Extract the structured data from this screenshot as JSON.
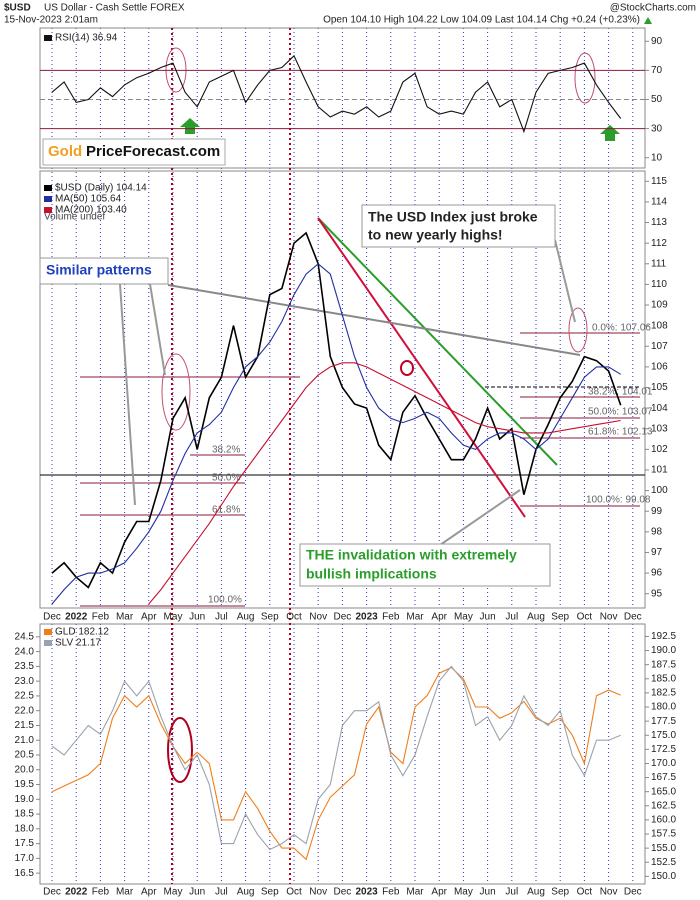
{
  "header": {
    "symbol": "$USD",
    "name": "US Dollar - Cash Settle FOREX",
    "date": "15-Nov-2023 2:01am",
    "quote": "Open 104.10 High 104.22 Low 104.09 Last 104.14 Chg +0.24 (+0.23%)",
    "credit": "@StockCharts.com",
    "logo": [
      "Gold",
      "PriceForecast.com"
    ]
  },
  "chart_data": [
    {
      "type": "line",
      "series": [
        {
          "name": "RSI(14) 36.94",
          "color": "#111111",
          "values": [
            55,
            62,
            48,
            50,
            58,
            52,
            60,
            65,
            68,
            72,
            75,
            55,
            45,
            62,
            66,
            70,
            48,
            60,
            70,
            72,
            80,
            62,
            45,
            38,
            42,
            40,
            45,
            38,
            42,
            62,
            68,
            45,
            40,
            42,
            40,
            55,
            62,
            45,
            50,
            28,
            55,
            68,
            70,
            72,
            75,
            60,
            48,
            36.94,
            null,
            null
          ]
        }
      ],
      "ylim": [
        5,
        95
      ],
      "yticks": [
        10,
        30,
        50,
        70,
        90
      ],
      "levels": [
        30,
        50,
        70
      ]
    },
    {
      "type": "line",
      "categories": [
        "Dec",
        null,
        "2022",
        null,
        "Feb",
        null,
        "Mar",
        null,
        "Apr",
        null,
        "May",
        null,
        "Jun",
        null,
        "Jul",
        null,
        "Aug",
        null,
        "Sep",
        null,
        "Oct",
        null,
        "Nov",
        null,
        "Dec",
        null,
        "2023",
        null,
        "Feb",
        null,
        "Mar",
        null,
        "Apr",
        null,
        "May",
        null,
        "Jun",
        null,
        "Jul",
        null,
        "Aug",
        null,
        "Sep",
        null,
        "Oct",
        null,
        "Nov",
        null,
        "Dec",
        null
      ],
      "series": [
        {
          "name": "$USD (Daily) 104.14",
          "color": "#000000",
          "values": [
            96.0,
            96.5,
            95.8,
            95.3,
            96.5,
            96.0,
            97.5,
            98.5,
            98.5,
            100.5,
            103.5,
            104.5,
            102.0,
            104.5,
            105.5,
            108.0,
            105.5,
            106.5,
            109.5,
            109.8,
            112.0,
            112.5,
            111.0,
            106.5,
            105.0,
            104.2,
            104.0,
            102.2,
            101.5,
            103.8,
            104.6,
            103.5,
            102.5,
            101.5,
            101.5,
            102.5,
            104.0,
            102.5,
            103.0,
            99.8,
            102.0,
            103.2,
            104.5,
            105.3,
            106.5,
            106.3,
            105.8,
            104.14,
            null,
            null
          ]
        },
        {
          "name": "MA(50) 105.64",
          "color": "#1f2fa0",
          "values": [
            94.5,
            95.2,
            95.8,
            96.0,
            96.0,
            96.2,
            96.5,
            97.2,
            98.0,
            99.0,
            100.5,
            101.8,
            102.8,
            103.2,
            103.8,
            105.0,
            106.0,
            106.5,
            107.2,
            108.2,
            109.5,
            110.5,
            111.0,
            110.5,
            108.5,
            106.5,
            105.0,
            104.0,
            103.5,
            103.3,
            103.5,
            103.8,
            103.5,
            102.8,
            102.2,
            102.0,
            102.5,
            102.8,
            102.8,
            102.5,
            102.0,
            102.5,
            103.5,
            104.5,
            105.5,
            106.0,
            106.0,
            105.64,
            null,
            null
          ]
        },
        {
          "name": "MA(200) 103.40",
          "color": "#c8102e",
          "values": [
            null,
            null,
            null,
            null,
            null,
            null,
            null,
            null,
            94.5,
            95.2,
            96.0,
            96.8,
            97.6,
            98.4,
            99.3,
            100.2,
            101.0,
            101.8,
            102.6,
            103.4,
            104.2,
            105.0,
            105.6,
            106.0,
            106.2,
            106.2,
            106.0,
            105.7,
            105.4,
            105.1,
            104.8,
            104.5,
            104.2,
            103.9,
            103.6,
            103.3,
            103.1,
            103.0,
            102.9,
            102.8,
            102.8,
            102.8,
            102.9,
            103.0,
            103.1,
            103.2,
            103.3,
            103.4,
            null,
            null
          ]
        }
      ],
      "legend_text": "Volume undef",
      "ylim": [
        94.5,
        115.5
      ],
      "yticks": [
        95,
        96,
        97,
        98,
        99,
        100,
        101,
        102,
        103,
        104,
        105,
        106,
        107,
        108,
        109,
        110,
        111,
        112,
        113,
        114,
        115
      ],
      "annotations": [
        "Similar patterns",
        "The USD Index just broke",
        "to new yearly highs!",
        "THE invalidation with extremely",
        "bullish implications"
      ],
      "fib_labels": [
        "0.0%: 107.06",
        "38.2%: 104.01",
        "50.0%: 103.07",
        "61.8%: 102.13",
        "100.0%: 99.08",
        "38.2%",
        "50.0%",
        "61.8%",
        "100.0%"
      ]
    },
    {
      "type": "line",
      "categories": [
        "Dec",
        null,
        "2022",
        null,
        "Feb",
        null,
        "Mar",
        null,
        "Apr",
        null,
        "May",
        null,
        "Jun",
        null,
        "Jul",
        null,
        "Aug",
        null,
        "Sep",
        null,
        "Oct",
        null,
        "Nov",
        null,
        "Dec",
        null,
        "2023",
        null,
        "Feb",
        null,
        "Mar",
        null,
        "Apr",
        null,
        "May",
        null,
        "Jun",
        null,
        "Jul",
        null,
        "Aug",
        null,
        "Sep",
        null,
        "Oct",
        null,
        "Nov",
        null,
        "Dec",
        null
      ],
      "series": [
        {
          "name": "GLD 182.12",
          "color": "#f07d1a",
          "axis": "y2",
          "values": [
            165,
            166,
            167,
            168,
            170,
            178,
            182,
            180,
            182,
            177,
            173,
            170,
            172,
            170,
            160,
            160,
            165,
            162,
            158,
            155,
            155,
            153,
            160,
            164,
            166,
            168,
            177,
            180,
            172,
            170,
            180,
            182,
            186,
            187,
            185,
            180,
            180,
            178,
            179,
            181,
            178,
            177,
            178,
            175,
            170,
            182,
            183,
            182.12,
            null,
            null
          ]
        },
        {
          "name": "SLV 21.17",
          "color": "#9aa3ad",
          "values": [
            20.8,
            20.5,
            21.0,
            21.5,
            21.2,
            22.0,
            23.0,
            22.5,
            23.0,
            21.8,
            20.8,
            20.0,
            20.5,
            19.5,
            17.5,
            17.5,
            18.5,
            17.8,
            17.3,
            17.5,
            17.8,
            17.5,
            19.0,
            19.5,
            21.5,
            22.0,
            22.0,
            22.3,
            20.5,
            19.8,
            20.5,
            21.8,
            23.0,
            23.5,
            23.0,
            21.5,
            21.8,
            21.0,
            21.5,
            22.5,
            21.8,
            21.5,
            22.0,
            20.5,
            19.8,
            21.0,
            21.0,
            21.17,
            null,
            null
          ]
        }
      ],
      "ylim": [
        16.2,
        24.8
      ],
      "yticks": [
        16.5,
        {
          "value": 17,
          "label": "17.0"
        },
        17.5,
        {
          "value": 18,
          "label": "18.0"
        },
        18.5,
        {
          "value": 19,
          "label": "19.0"
        },
        19.5,
        {
          "value": 20,
          "label": "20.0"
        },
        20.5,
        {
          "value": 21,
          "label": "21.0"
        },
        21.5,
        {
          "value": 22,
          "label": "22.0"
        },
        22.5,
        {
          "value": 23,
          "label": "23.0"
        },
        23.5,
        {
          "value": 24,
          "label": "24.0"
        },
        24.5
      ],
      "y2lim": [
        149,
        194
      ],
      "y2ticks": [
        {
          "value": 150,
          "label": "150.0"
        },
        152.5,
        {
          "value": 155,
          "label": "155.0"
        },
        157.5,
        {
          "value": 160,
          "label": "160.0"
        },
        162.5,
        {
          "value": 165,
          "label": "165.0"
        },
        167.5,
        {
          "value": 170,
          "label": "170.0"
        },
        172.5,
        {
          "value": 175,
          "label": "175.0"
        },
        177.5,
        {
          "value": 180,
          "label": "180.0"
        },
        182.5,
        {
          "value": 185,
          "label": "185.0"
        },
        187.5,
        {
          "value": 190,
          "label": "190.0"
        },
        192.5
      ]
    }
  ]
}
